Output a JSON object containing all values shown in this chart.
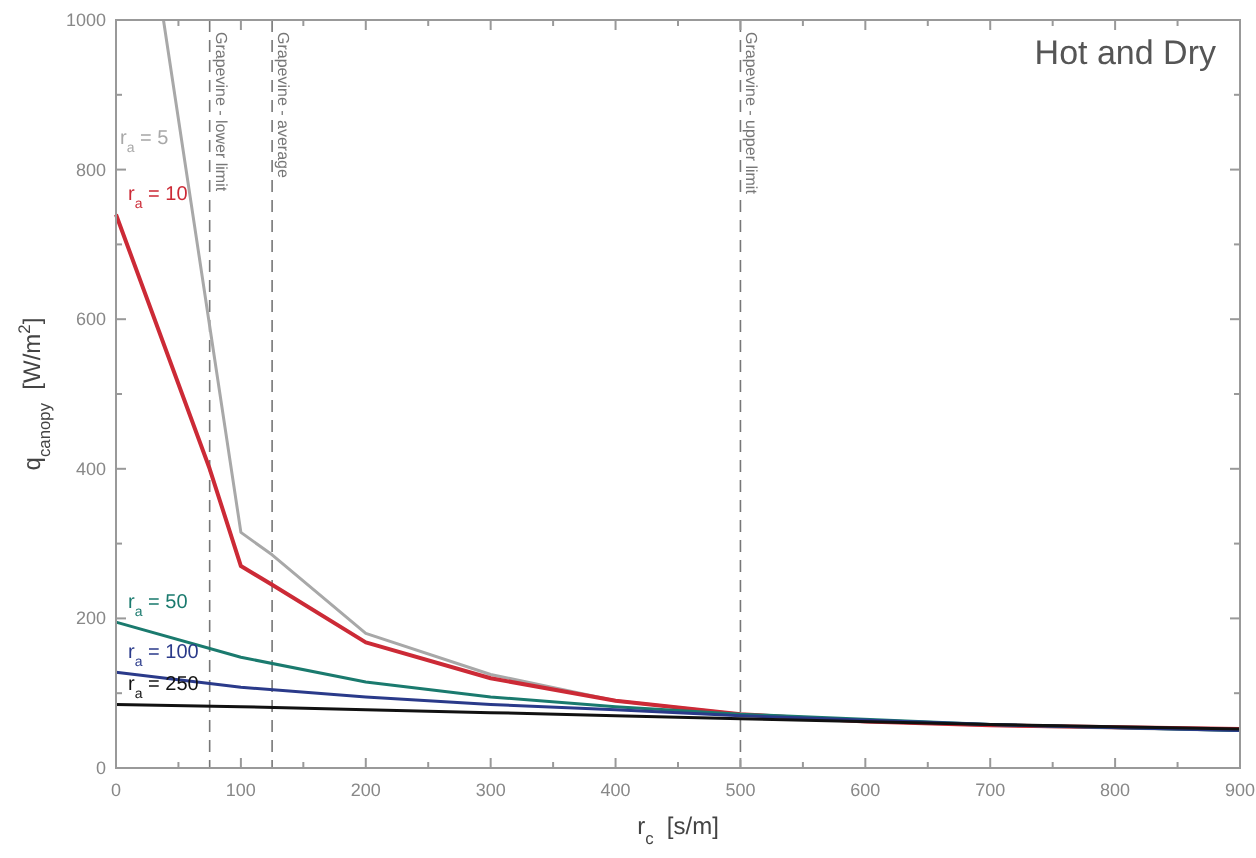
{
  "chart_data": {
    "type": "line",
    "title": "Hot and Dry",
    "xlabel": "r$_{c}$  [s/m]",
    "ylabel": "q$_{canopy}$  [W/m$^{2}$]",
    "xlim": [
      0,
      900
    ],
    "ylim": [
      0,
      1000
    ],
    "xticks": [
      0,
      100,
      200,
      300,
      400,
      500,
      600,
      700,
      800,
      900
    ],
    "yticks": [
      0,
      200,
      400,
      600,
      800,
      1000
    ],
    "grid": false,
    "marker": "none",
    "line_style": "solid",
    "series": [
      {
        "name": "r$_{a}$ = 5",
        "color": "#a8a8a8",
        "x": [
          38,
          75,
          100,
          125,
          200,
          300,
          400,
          500,
          600,
          700,
          900
        ],
        "values": [
          1000,
          591,
          315,
          285,
          180,
          125,
          90,
          72,
          62,
          57,
          50
        ]
      },
      {
        "name": "r$_{a}$ = 10",
        "color": "#cc2a36",
        "x": [
          0,
          75,
          100,
          125,
          200,
          300,
          400,
          500,
          600,
          700,
          900
        ],
        "values": [
          740,
          400,
          270,
          245,
          168,
          120,
          90,
          72,
          62,
          57,
          52
        ]
      },
      {
        "name": "r$_{a}$ = 50",
        "color": "#1a7a6e",
        "x": [
          0,
          100,
          200,
          300,
          400,
          500,
          700,
          900
        ],
        "values": [
          195,
          148,
          115,
          95,
          82,
          72,
          58,
          50
        ]
      },
      {
        "name": "r$_{a}$ = 100",
        "color": "#2a3a8a",
        "x": [
          0,
          100,
          200,
          300,
          400,
          500,
          700,
          900
        ],
        "values": [
          128,
          108,
          95,
          85,
          78,
          70,
          58,
          50
        ]
      },
      {
        "name": "r$_{a}$ = 250",
        "color": "#111111",
        "x": [
          0,
          100,
          200,
          300,
          400,
          500,
          700,
          900
        ],
        "values": [
          85,
          82,
          78,
          74,
          70,
          66,
          58,
          52
        ]
      }
    ],
    "ref_lines": [
      {
        "axis": "x",
        "value": 75,
        "label": "Grapevine - lower limit",
        "color": "#777777",
        "line_style": "dashed"
      },
      {
        "axis": "x",
        "value": 125,
        "label": "Grapevine - average",
        "color": "#777777",
        "line_style": "dashed"
      },
      {
        "axis": "x",
        "value": 500,
        "label": "Grapevine - upper limit",
        "color": "#777777",
        "line_style": "dashed"
      }
    ]
  }
}
